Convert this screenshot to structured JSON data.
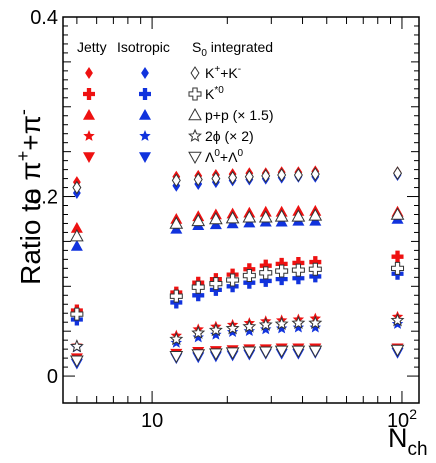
{
  "chart_data": {
    "type": "scatter",
    "xscale": "log",
    "xlim": [
      4.4,
      117
    ],
    "ylim": [
      -0.03,
      0.4
    ],
    "xticks": [
      {
        "v": 10,
        "label": "10"
      },
      {
        "v": 100,
        "label": "10",
        "sup": "2"
      }
    ],
    "yticks": [
      {
        "v": 0,
        "label": "0"
      },
      {
        "v": 0.2,
        "label": "0.2"
      },
      {
        "v": 0.4,
        "label": "0.4"
      }
    ],
    "xlabel": {
      "main": "N",
      "sub": "ch"
    },
    "ylabel": {
      "main": "Ratio to π",
      "sup1": "+",
      "mid": "+π",
      "sup2": "-"
    },
    "legend": {
      "header_jetty": "Jetty",
      "header_isotropic": "Isotropic",
      "header_s0": "S",
      "header_s0_sub": "0",
      "header_s0_rest": " integrated",
      "entries": [
        {
          "marker": "diamond",
          "text": "K",
          "sup1": "+",
          "mid": "+K",
          "sup2": "-"
        },
        {
          "marker": "cross",
          "text": "K",
          "sup1": "*0",
          "mid": "",
          "sup2": ""
        },
        {
          "marker": "triangle-up",
          "text": "p+p (× 1.5)",
          "sup1": "",
          "mid": "",
          "sup2": ""
        },
        {
          "marker": "star",
          "text": "2ϕ (× 2)",
          "sup1": "",
          "mid": "",
          "sup2": ""
        },
        {
          "marker": "triangle-down",
          "text": "Λ",
          "sup1": "0",
          "mid": "+Λ",
          "sup2": "0"
        }
      ]
    },
    "colors": {
      "jetty": "#ee1111",
      "isotropic": "#1133dd",
      "integrated": "#ffffff",
      "integrated_edge": "#333333"
    },
    "x_low": 5.0,
    "x_mid": [
      12.5,
      15.3,
      18.0,
      21.0,
      24.5,
      28.5,
      33.0,
      38.5,
      45.0
    ],
    "x_high": 96.0,
    "series": [
      {
        "particle": "K",
        "marker": "diamond",
        "jetty": [
          0.216,
          0.222,
          0.223,
          0.224,
          0.225,
          0.226,
          0.226,
          0.227,
          0.227,
          0.228,
          0.227
        ],
        "isotropic": [
          0.204,
          0.212,
          0.214,
          0.216,
          0.218,
          0.219,
          0.22,
          0.221,
          0.222,
          0.222,
          0.224
        ],
        "integrated": [
          0.21,
          0.218,
          0.219,
          0.22,
          0.221,
          0.222,
          0.223,
          0.224,
          0.224,
          0.225,
          0.226
        ]
      },
      {
        "particle": "Kstar",
        "marker": "cross",
        "jetty": [
          0.073,
          0.093,
          0.104,
          0.108,
          0.113,
          0.119,
          0.123,
          0.125,
          0.126,
          0.127,
          0.133
        ],
        "isotropic": [
          0.063,
          0.082,
          0.09,
          0.096,
          0.1,
          0.104,
          0.106,
          0.108,
          0.109,
          0.111,
          0.114
        ],
        "integrated": [
          0.069,
          0.089,
          0.099,
          0.103,
          0.107,
          0.112,
          0.115,
          0.117,
          0.118,
          0.119,
          0.12
        ]
      },
      {
        "particle": "p",
        "marker": "triangle-up",
        "jetty": [
          0.165,
          0.175,
          0.178,
          0.18,
          0.181,
          0.182,
          0.183,
          0.183,
          0.184,
          0.184,
          0.183
        ],
        "isotropic": [
          0.145,
          0.164,
          0.168,
          0.169,
          0.17,
          0.171,
          0.172,
          0.172,
          0.173,
          0.173,
          0.175
        ],
        "integrated": [
          0.156,
          0.17,
          0.173,
          0.175,
          0.176,
          0.177,
          0.177,
          0.178,
          0.178,
          0.179,
          0.18
        ]
      },
      {
        "particle": "phi",
        "marker": "star",
        "jetty": [
          0.034,
          0.045,
          0.052,
          0.055,
          0.057,
          0.059,
          0.061,
          0.062,
          0.063,
          0.064,
          0.066
        ],
        "isotropic": [
          0.032,
          0.037,
          0.043,
          0.046,
          0.049,
          0.05,
          0.052,
          0.053,
          0.054,
          0.054,
          0.058
        ],
        "integrated": [
          0.033,
          0.041,
          0.048,
          0.051,
          0.053,
          0.055,
          0.057,
          0.058,
          0.059,
          0.059,
          0.062
        ]
      },
      {
        "particle": "Lambda",
        "marker": "triangle-down",
        "jetty": [
          0.02,
          0.025,
          0.027,
          0.028,
          0.029,
          0.03,
          0.03,
          0.031,
          0.031,
          0.031,
          0.031
        ],
        "isotropic": [
          0.014,
          0.02,
          0.021,
          0.022,
          0.023,
          0.024,
          0.025,
          0.025,
          0.025,
          0.026,
          0.026
        ],
        "integrated": [
          0.017,
          0.022,
          0.024,
          0.025,
          0.026,
          0.027,
          0.027,
          0.028,
          0.028,
          0.028,
          0.029
        ]
      }
    ]
  }
}
